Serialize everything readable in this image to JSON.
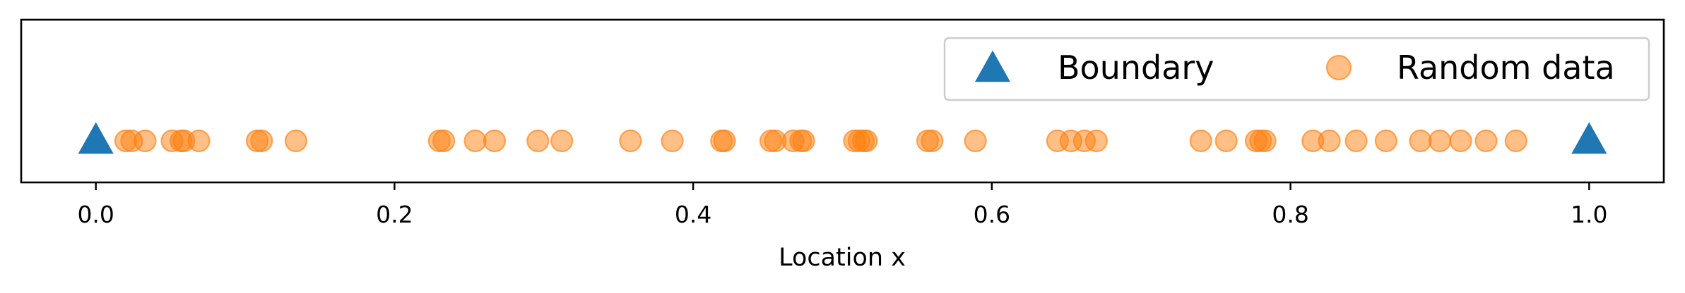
{
  "chart_data": {
    "type": "scatter",
    "xlabel": "Location x",
    "ylabel": "",
    "xlim": [
      -0.05,
      1.05
    ],
    "x_ticks": [
      0.0,
      0.2,
      0.4,
      0.6,
      0.8,
      1.0
    ],
    "x_tick_labels": [
      "0.0",
      "0.2",
      "0.4",
      "0.6",
      "0.8",
      "1.0"
    ],
    "y_ticks_visible": false,
    "grid": false,
    "legend": {
      "placement": "top-right",
      "columns": 2
    },
    "series": [
      {
        "name": "Boundary",
        "marker": "triangle",
        "color": "#1f77b4",
        "x": [
          0.0,
          1.0
        ]
      },
      {
        "name": "Random data",
        "marker": "circle",
        "color": "#ff7f0e",
        "alpha": 0.5,
        "x": [
          0.02,
          0.024,
          0.033,
          0.051,
          0.057,
          0.059,
          0.069,
          0.108,
          0.111,
          0.134,
          0.23,
          0.233,
          0.254,
          0.267,
          0.296,
          0.312,
          0.358,
          0.386,
          0.419,
          0.421,
          0.452,
          0.455,
          0.467,
          0.472,
          0.474,
          0.508,
          0.511,
          0.514,
          0.516,
          0.557,
          0.56,
          0.589,
          0.644,
          0.653,
          0.662,
          0.67,
          0.74,
          0.757,
          0.777,
          0.78,
          0.783,
          0.815,
          0.826,
          0.844,
          0.864,
          0.887,
          0.9,
          0.914,
          0.931,
          0.951
        ]
      }
    ]
  }
}
